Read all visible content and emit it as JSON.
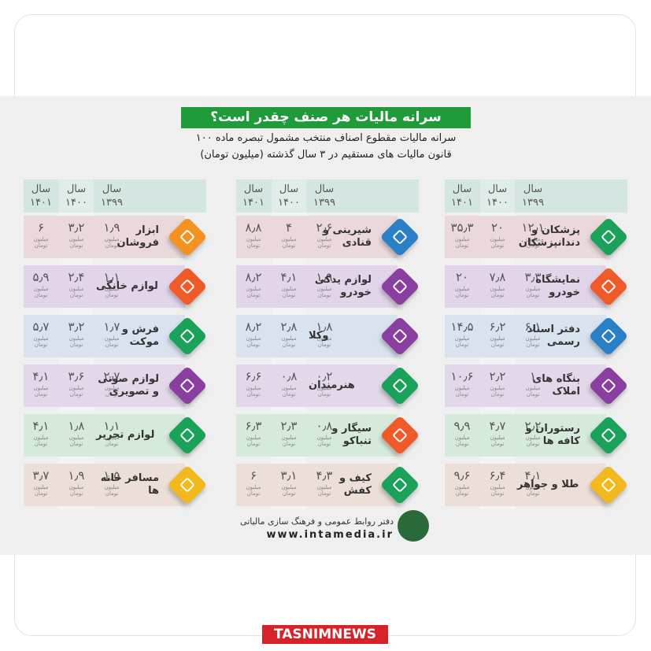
{
  "title": "سرانه مالیات هر صنف چقدر است؟",
  "subtitle": [
    "سرانه مالیات مقطوع اصناف منتخب مشمول تبصره ماده ۱۰۰",
    "قانون مالیات های مستقیم در ۳ سال گذشته (میلیون تومان)"
  ],
  "years": [
    "سال ۱۳۹۹",
    "سال ۱۴۰۰",
    "سال ۱۴۰۱"
  ],
  "unit": "میلیون تومان",
  "panels": [
    {
      "rows": [
        {
          "label": "پزشکان و دندانپزشکان",
          "values": [
            "۱۲٫۱",
            "۲۰",
            "۳۵٫۳"
          ]
        },
        {
          "label": "نمایشگاه خودرو",
          "values": [
            "۳٫۳",
            "۷٫۸",
            "۲۰"
          ]
        },
        {
          "label": "دفتر اسناد رسمی",
          "values": [
            "۶٫۱",
            "۶٫۲",
            "۱۴٫۵"
          ]
        },
        {
          "label": "بنگاه های املاک",
          "values": [
            "۱",
            "۲٫۲",
            "۱۰٫۶"
          ]
        },
        {
          "label": "رستوران و کافه ها",
          "values": [
            "۲٫۲",
            "۴٫۷",
            "۹٫۹"
          ]
        },
        {
          "label": "طلا و جواهر",
          "values": [
            "۴٫۱",
            "۶٫۴",
            "۹٫۶"
          ]
        }
      ]
    },
    {
      "rows": [
        {
          "label": "شیرینی و قنادی",
          "values": [
            "۲٫۶",
            "۴",
            "۸٫۸"
          ]
        },
        {
          "label": "لوازم یدکی خودرو",
          "values": [
            "۱٫۹",
            "۴٫۱",
            "۸٫۲"
          ]
        },
        {
          "label": "وکلا",
          "values": [
            "۱٫۸",
            "۲٫۸",
            "۸٫۲"
          ]
        },
        {
          "label": "هنرمندان",
          "values": [
            "۰٫۲",
            "۰٫۸",
            "۶٫۶"
          ]
        },
        {
          "label": "سیگار و تنباکو",
          "values": [
            "۰٫۸",
            "۲٫۳",
            "۶٫۳"
          ]
        },
        {
          "label": "کیف و کفش",
          "values": [
            "۴٫۳",
            "۳٫۱",
            "۶"
          ]
        }
      ]
    },
    {
      "rows": [
        {
          "label": "ابزار فروشان",
          "values": [
            "۱٫۹",
            "۳٫۲",
            "۶"
          ]
        },
        {
          "label": "لوازم خانگی",
          "values": [
            "۱٫۱",
            "۲٫۴",
            "۵٫۹"
          ]
        },
        {
          "label": "فرش و موکت",
          "values": [
            "۱٫۷",
            "۳٫۲",
            "۵٫۷"
          ]
        },
        {
          "label": "لوازم صوتی و تصویری",
          "values": [
            "۲٫۷",
            "۳٫۶",
            "۴٫۱"
          ]
        },
        {
          "label": "لوازم تحریر",
          "values": [
            "۱٫۱",
            "۱٫۸",
            "۴٫۱"
          ]
        },
        {
          "label": "مسافر خانه ها",
          "values": [
            "۱٫۵",
            "۱٫۹",
            "۳٫۷"
          ]
        }
      ]
    }
  ],
  "footer": {
    "org": "دفتر روابط عمومی و فرهنگ سازی مالیاتی",
    "url": "www.intamedia.ir",
    "brand": "TASNIMNEWS"
  }
}
